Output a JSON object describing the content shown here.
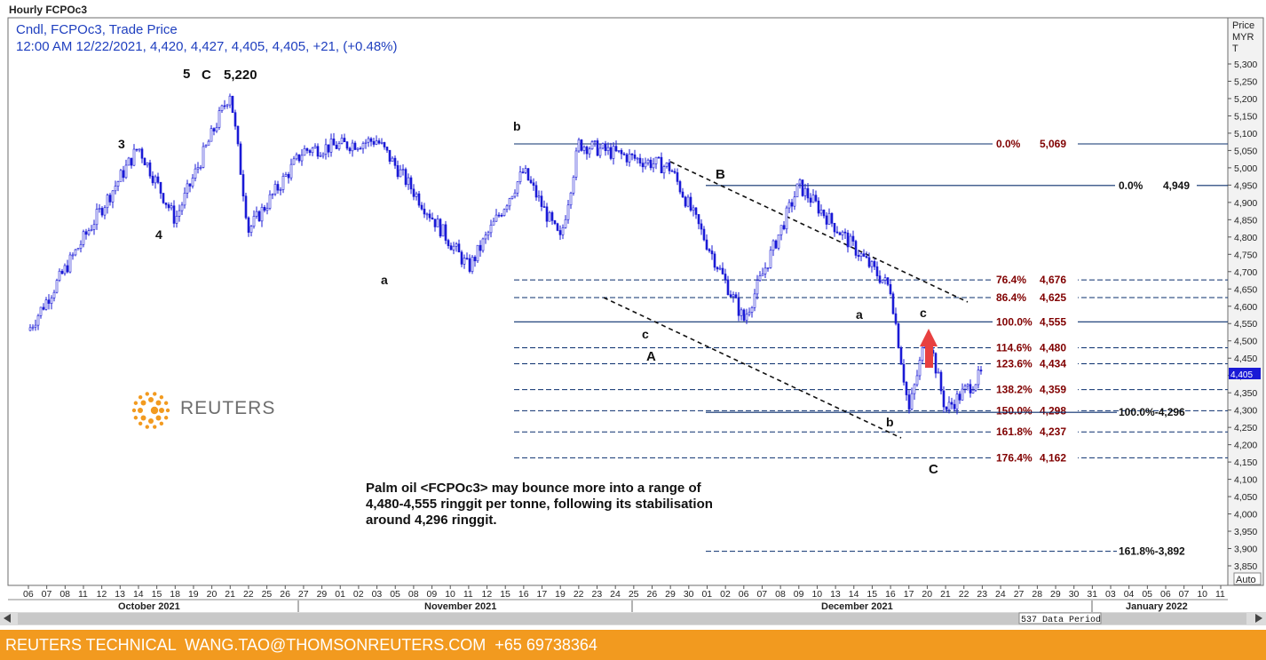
{
  "window_title": "Hourly FCPOc3",
  "header": {
    "line1": "Cndl, FCPOc3, Trade Price",
    "line2": "12:00 AM 12/22/2021, 4,420, 4,427, 4,405, 4,405, +21, (+0.48%)"
  },
  "price_axis": {
    "title_lines": [
      "Price",
      "MYR",
      "T"
    ],
    "ticks": [
      "5,300",
      "5,250",
      "5,200",
      "5,150",
      "5,100",
      "5,050",
      "5,000",
      "4,950",
      "4,900",
      "4,850",
      "4,800",
      "4,750",
      "4,700",
      "4,650",
      "4,600",
      "4,550",
      "4,500",
      "4,450",
      "4,400",
      "4,350",
      "4,300",
      "4,250",
      "4,200",
      "4,150",
      "4,100",
      "4,050",
      "4,000",
      "3,950",
      "3,900",
      "3,850"
    ],
    "current_price_label": "4,405",
    "auto_label": "Auto"
  },
  "date_axis": {
    "day_labels": [
      "06",
      "07",
      "08",
      "11",
      "12",
      "13",
      "14",
      "15",
      "18",
      "19",
      "20",
      "21",
      "22",
      "25",
      "26",
      "27",
      "29",
      "01",
      "02",
      "03",
      "05",
      "08",
      "09",
      "10",
      "11",
      "12",
      "15",
      "16",
      "17",
      "19",
      "22",
      "23",
      "24",
      "25",
      "26",
      "29",
      "30",
      "01",
      "02",
      "06",
      "07",
      "08",
      "09",
      "10",
      "13",
      "14",
      "15",
      "16",
      "17",
      "20",
      "21",
      "22",
      "23",
      "24",
      "27",
      "28",
      "29",
      "30",
      "31",
      "03",
      "04",
      "05",
      "06",
      "07",
      "10",
      "11"
    ],
    "month_labels": [
      "October 2021",
      "November 2021",
      "December 2021",
      "January 2022"
    ],
    "data_period_label": "537 Data Period"
  },
  "wave_labels": [
    "5",
    "C",
    "5,220",
    "3",
    "4",
    "a",
    "b",
    "B",
    "c",
    "A",
    "a",
    "c",
    "b",
    "C"
  ],
  "fib_levels_primary": [
    {
      "pct": "0.0%",
      "value": "5,069",
      "price": 5069,
      "style": "solid"
    },
    {
      "pct": "76.4%",
      "value": "4,676",
      "price": 4676,
      "style": "dashed"
    },
    {
      "pct": "86.4%",
      "value": "4,625",
      "price": 4625,
      "style": "dashed"
    },
    {
      "pct": "100.0%",
      "value": "4,555",
      "price": 4555,
      "style": "solid"
    },
    {
      "pct": "114.6%",
      "value": "4,480",
      "price": 4480,
      "style": "dashed"
    },
    {
      "pct": "123.6%",
      "value": "4,434",
      "price": 4434,
      "style": "dashed"
    },
    {
      "pct": "138.2%",
      "value": "4,359",
      "price": 4359,
      "style": "dashed"
    },
    {
      "pct": "150.0%",
      "value": "4,298",
      "price": 4298,
      "style": "dashed"
    },
    {
      "pct": "161.8%",
      "value": "4,237",
      "price": 4237,
      "style": "dashed"
    },
    {
      "pct": "176.4%",
      "value": "4,162",
      "price": 4162,
      "style": "dashed"
    }
  ],
  "fib_levels_secondary": [
    {
      "label": "0.0%",
      "value": "4,949",
      "price": 4949
    },
    {
      "label": "100.0%-4,296",
      "value": "",
      "price": 4296
    },
    {
      "label": "161.8%-3,892",
      "value": "",
      "price": 3892
    }
  ],
  "annotation": {
    "lines": [
      "Palm oil <FCPOc3> may bounce more into a range of",
      "4,480-4,555 ringgit per tonne, following its stabilisation",
      "around 4,296 ringgit."
    ]
  },
  "logo": {
    "text": "REUTERS"
  },
  "footer": {
    "text": "REUTERS TECHNICAL  WANG.TAO@THOMSONREUTERS.COM  +65 69738364"
  },
  "colors": {
    "candle": "#1a1ad6",
    "fib_primary": "#800000",
    "line": "#0a2f6e",
    "footer_bg": "#f29a1f",
    "arrow": "#e84040"
  },
  "chart_data": {
    "type": "candlestick",
    "title": "Hourly FCPOc3",
    "ylabel": "Price MYR T",
    "ylim": [
      3830,
      5330
    ],
    "x_range": [
      "2021-10-06",
      "2022-01-11"
    ],
    "key_points": [
      {
        "date": "2021-10-06",
        "price": 4530,
        "label": ""
      },
      {
        "date": "2021-10-14",
        "price": 5060,
        "label": "3"
      },
      {
        "date": "2021-10-18",
        "price": 4850,
        "label": "4"
      },
      {
        "date": "2021-10-21",
        "price": 5220,
        "label": "5 C 5,220"
      },
      {
        "date": "2021-10-22",
        "price": 4820,
        "label": ""
      },
      {
        "date": "2021-10-27",
        "price": 5050,
        "label": ""
      },
      {
        "date": "2021-11-03",
        "price": 5080,
        "label": ""
      },
      {
        "date": "2021-11-10",
        "price": 4710,
        "label": "a"
      },
      {
        "date": "2021-11-15",
        "price": 4990,
        "label": ""
      },
      {
        "date": "2021-11-17",
        "price": 4790,
        "label": ""
      },
      {
        "date": "2021-11-19",
        "price": 5069,
        "label": "b"
      },
      {
        "date": "2021-11-26",
        "price": 5000,
        "label": ""
      },
      {
        "date": "2021-12-02",
        "price": 4560,
        "label": "c A"
      },
      {
        "date": "2021-12-08",
        "price": 4949,
        "label": "B"
      },
      {
        "date": "2021-12-15",
        "price": 4650,
        "label": ""
      },
      {
        "date": "2021-12-16",
        "price": 4296,
        "label": ""
      },
      {
        "date": "2021-12-17",
        "price": 4530,
        "label": "a"
      },
      {
        "date": "2021-12-20",
        "price": 4300,
        "label": "b"
      },
      {
        "date": "2021-12-22",
        "price": 4405,
        "label": "c"
      }
    ],
    "last_bar": {
      "time": "12:00 AM 12/22/2021",
      "open": 4420,
      "high": 4427,
      "low": 4405,
      "close": 4405,
      "change": 21,
      "change_pct": 0.48
    }
  }
}
